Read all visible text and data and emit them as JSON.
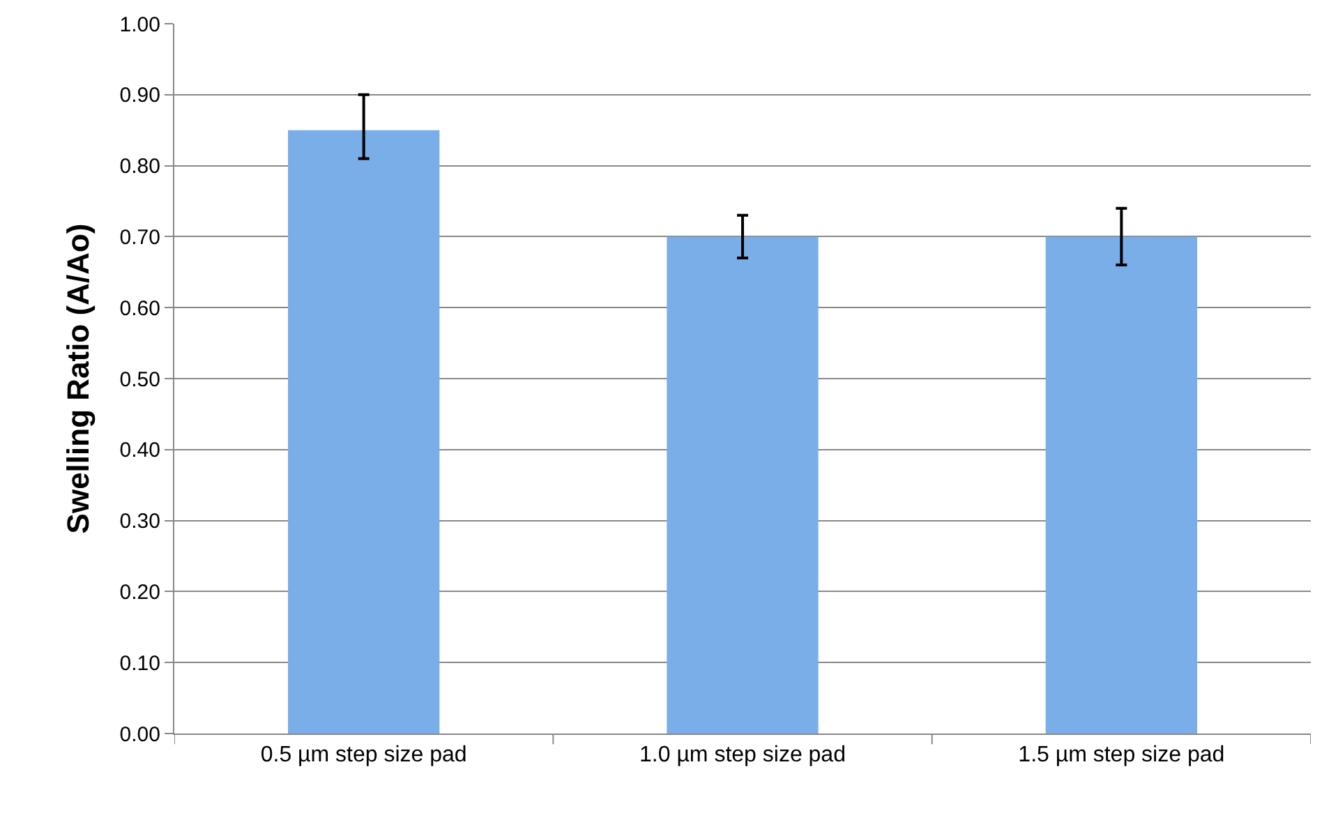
{
  "chart_data": {
    "type": "bar",
    "ylabel": "Swelling Ratio (A/Ao)",
    "categories": [
      "0.5 µm step size pad",
      "1.0 µm step size pad",
      "1.5 µm step size pad"
    ],
    "values": [
      0.85,
      0.7,
      0.7
    ],
    "errors": [
      [
        0.81,
        0.9
      ],
      [
        0.67,
        0.73
      ],
      [
        0.66,
        0.74
      ]
    ],
    "color": "#7aaee8",
    "ylim": [
      0,
      1
    ],
    "yticks": [
      {
        "value": 0,
        "label": "0.00"
      },
      {
        "value": 0.1,
        "label": "0.10"
      },
      {
        "value": 0.2,
        "label": "0.20"
      },
      {
        "value": 0.3,
        "label": "0.30"
      },
      {
        "value": 0.4,
        "label": "0.40"
      },
      {
        "value": 0.5,
        "label": "0.50"
      },
      {
        "value": 0.6,
        "label": "0.60"
      },
      {
        "value": 0.7,
        "label": "0.70"
      },
      {
        "value": 0.8,
        "label": "0.80"
      },
      {
        "value": 0.9,
        "label": "0.90"
      },
      {
        "value": 1,
        "label": "1.00"
      }
    ],
    "grid": "y"
  }
}
